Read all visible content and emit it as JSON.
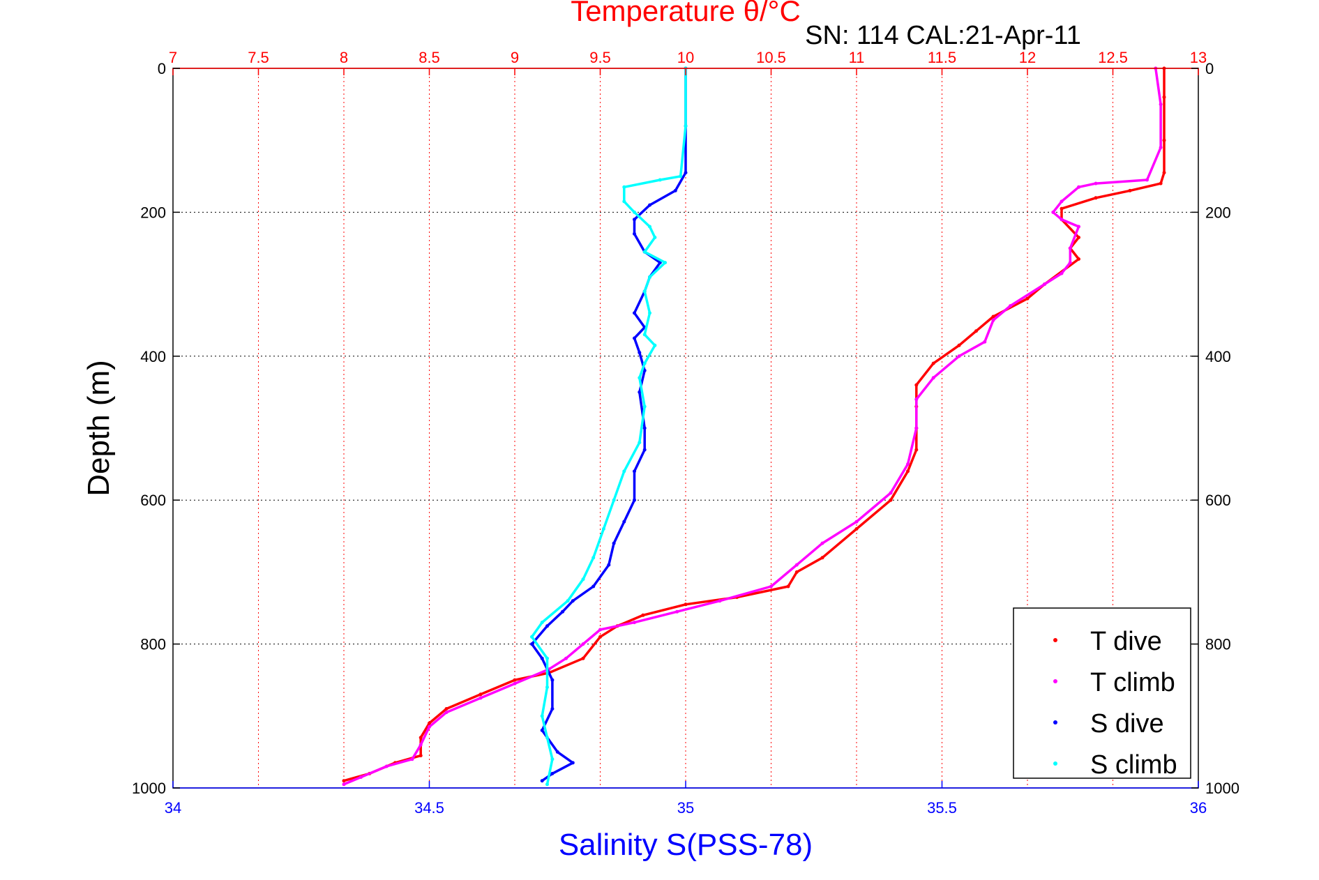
{
  "chart_data": {
    "type": "scatter",
    "title": "SN: 114  CAL:21-Apr-11",
    "top_xlabel": "Temperature θ/°C",
    "xlabel": "Salinity S(PSS-78)",
    "ylabel": "Depth (m)",
    "ylim": [
      0,
      1000
    ],
    "y_reversed": true,
    "yticks": [
      "0",
      "200",
      "400",
      "600",
      "800",
      "1000"
    ],
    "temperature_axis": {
      "lim": [
        7,
        13
      ],
      "ticks": [
        "7",
        "7.5",
        "8",
        "8.5",
        "9",
        "9.5",
        "10",
        "10.5",
        "11",
        "11.5",
        "12",
        "12.5",
        "13"
      ],
      "color": "#ff0000"
    },
    "salinity_axis": {
      "lim": [
        34,
        36
      ],
      "ticks": [
        "34",
        "34.5",
        "35",
        "35.5",
        "36"
      ],
      "color": "#0000ff"
    },
    "grid": true,
    "legend_position": "bottom-right",
    "series": [
      {
        "name": "T dive",
        "axis": "temperature",
        "color": "#ff0000",
        "points": [
          [
            12.8,
            0
          ],
          [
            12.8,
            40
          ],
          [
            12.8,
            100
          ],
          [
            12.8,
            145
          ],
          [
            12.78,
            160
          ],
          [
            12.6,
            170
          ],
          [
            12.4,
            180
          ],
          [
            12.2,
            195
          ],
          [
            12.2,
            210
          ],
          [
            12.3,
            235
          ],
          [
            12.25,
            250
          ],
          [
            12.3,
            265
          ],
          [
            12.1,
            300
          ],
          [
            12.0,
            320
          ],
          [
            11.8,
            345
          ],
          [
            11.7,
            365
          ],
          [
            11.6,
            385
          ],
          [
            11.45,
            410
          ],
          [
            11.35,
            440
          ],
          [
            11.35,
            470
          ],
          [
            11.35,
            500
          ],
          [
            11.35,
            530
          ],
          [
            11.3,
            560
          ],
          [
            11.2,
            600
          ],
          [
            11.0,
            640
          ],
          [
            10.8,
            680
          ],
          [
            10.65,
            700
          ],
          [
            10.6,
            720
          ],
          [
            10.3,
            735
          ],
          [
            10.0,
            745
          ],
          [
            9.75,
            760
          ],
          [
            9.6,
            775
          ],
          [
            9.5,
            790
          ],
          [
            9.4,
            820
          ],
          [
            9.2,
            840
          ],
          [
            9.0,
            850
          ],
          [
            8.8,
            870
          ],
          [
            8.6,
            890
          ],
          [
            8.5,
            910
          ],
          [
            8.45,
            930
          ],
          [
            8.45,
            955
          ],
          [
            8.3,
            965
          ],
          [
            8.15,
            980
          ],
          [
            8.0,
            990
          ]
        ]
      },
      {
        "name": "T climb",
        "axis": "temperature",
        "color": "#ff00ff",
        "points": [
          [
            12.75,
            0
          ],
          [
            12.78,
            50
          ],
          [
            12.78,
            110
          ],
          [
            12.7,
            155
          ],
          [
            12.4,
            160
          ],
          [
            12.3,
            165
          ],
          [
            12.2,
            185
          ],
          [
            12.15,
            200
          ],
          [
            12.2,
            210
          ],
          [
            12.3,
            220
          ],
          [
            12.25,
            250
          ],
          [
            12.25,
            270
          ],
          [
            12.2,
            285
          ],
          [
            12.1,
            300
          ],
          [
            11.9,
            330
          ],
          [
            11.8,
            350
          ],
          [
            11.75,
            380
          ],
          [
            11.6,
            400
          ],
          [
            11.45,
            430
          ],
          [
            11.35,
            460
          ],
          [
            11.35,
            500
          ],
          [
            11.3,
            550
          ],
          [
            11.2,
            590
          ],
          [
            11.0,
            630
          ],
          [
            10.8,
            660
          ],
          [
            10.65,
            690
          ],
          [
            10.5,
            720
          ],
          [
            10.2,
            740
          ],
          [
            9.95,
            755
          ],
          [
            9.7,
            770
          ],
          [
            9.5,
            780
          ],
          [
            9.4,
            800
          ],
          [
            9.3,
            820
          ],
          [
            9.2,
            835
          ],
          [
            9.0,
            855
          ],
          [
            8.8,
            875
          ],
          [
            8.6,
            895
          ],
          [
            8.5,
            915
          ],
          [
            8.45,
            940
          ],
          [
            8.4,
            960
          ],
          [
            8.25,
            970
          ],
          [
            8.1,
            985
          ],
          [
            8.0,
            995
          ]
        ]
      },
      {
        "name": "S dive",
        "axis": "salinity",
        "color": "#0000ff",
        "points": [
          [
            35.0,
            0
          ],
          [
            35.0,
            80
          ],
          [
            35.0,
            145
          ],
          [
            34.98,
            170
          ],
          [
            34.93,
            190
          ],
          [
            34.9,
            210
          ],
          [
            34.9,
            230
          ],
          [
            34.92,
            255
          ],
          [
            34.95,
            270
          ],
          [
            34.93,
            290
          ],
          [
            34.92,
            310
          ],
          [
            34.9,
            340
          ],
          [
            34.92,
            360
          ],
          [
            34.9,
            375
          ],
          [
            34.91,
            395
          ],
          [
            34.92,
            420
          ],
          [
            34.91,
            450
          ],
          [
            34.92,
            500
          ],
          [
            34.92,
            530
          ],
          [
            34.9,
            560
          ],
          [
            34.9,
            600
          ],
          [
            34.88,
            630
          ],
          [
            34.86,
            660
          ],
          [
            34.85,
            690
          ],
          [
            34.82,
            720
          ],
          [
            34.78,
            740
          ],
          [
            34.76,
            755
          ],
          [
            34.73,
            775
          ],
          [
            34.7,
            800
          ],
          [
            34.72,
            820
          ],
          [
            34.74,
            850
          ],
          [
            34.74,
            890
          ],
          [
            34.72,
            920
          ],
          [
            34.75,
            950
          ],
          [
            34.78,
            965
          ],
          [
            34.74,
            980
          ],
          [
            34.72,
            990
          ]
        ]
      },
      {
        "name": "S climb",
        "axis": "salinity",
        "color": "#00ffff",
        "points": [
          [
            35.0,
            0
          ],
          [
            35.0,
            80
          ],
          [
            34.99,
            150
          ],
          [
            34.95,
            155
          ],
          [
            34.88,
            165
          ],
          [
            34.88,
            185
          ],
          [
            34.9,
            200
          ],
          [
            34.93,
            220
          ],
          [
            34.94,
            235
          ],
          [
            34.92,
            255
          ],
          [
            34.96,
            270
          ],
          [
            34.93,
            290
          ],
          [
            34.92,
            310
          ],
          [
            34.93,
            340
          ],
          [
            34.92,
            370
          ],
          [
            34.94,
            385
          ],
          [
            34.92,
            410
          ],
          [
            34.91,
            430
          ],
          [
            34.92,
            470
          ],
          [
            34.91,
            520
          ],
          [
            34.88,
            560
          ],
          [
            34.86,
            600
          ],
          [
            34.84,
            640
          ],
          [
            34.82,
            680
          ],
          [
            34.8,
            710
          ],
          [
            34.77,
            740
          ],
          [
            34.72,
            770
          ],
          [
            34.7,
            790
          ],
          [
            34.73,
            820
          ],
          [
            34.73,
            860
          ],
          [
            34.72,
            900
          ],
          [
            34.73,
            930
          ],
          [
            34.74,
            960
          ],
          [
            34.73,
            995
          ]
        ]
      }
    ]
  }
}
